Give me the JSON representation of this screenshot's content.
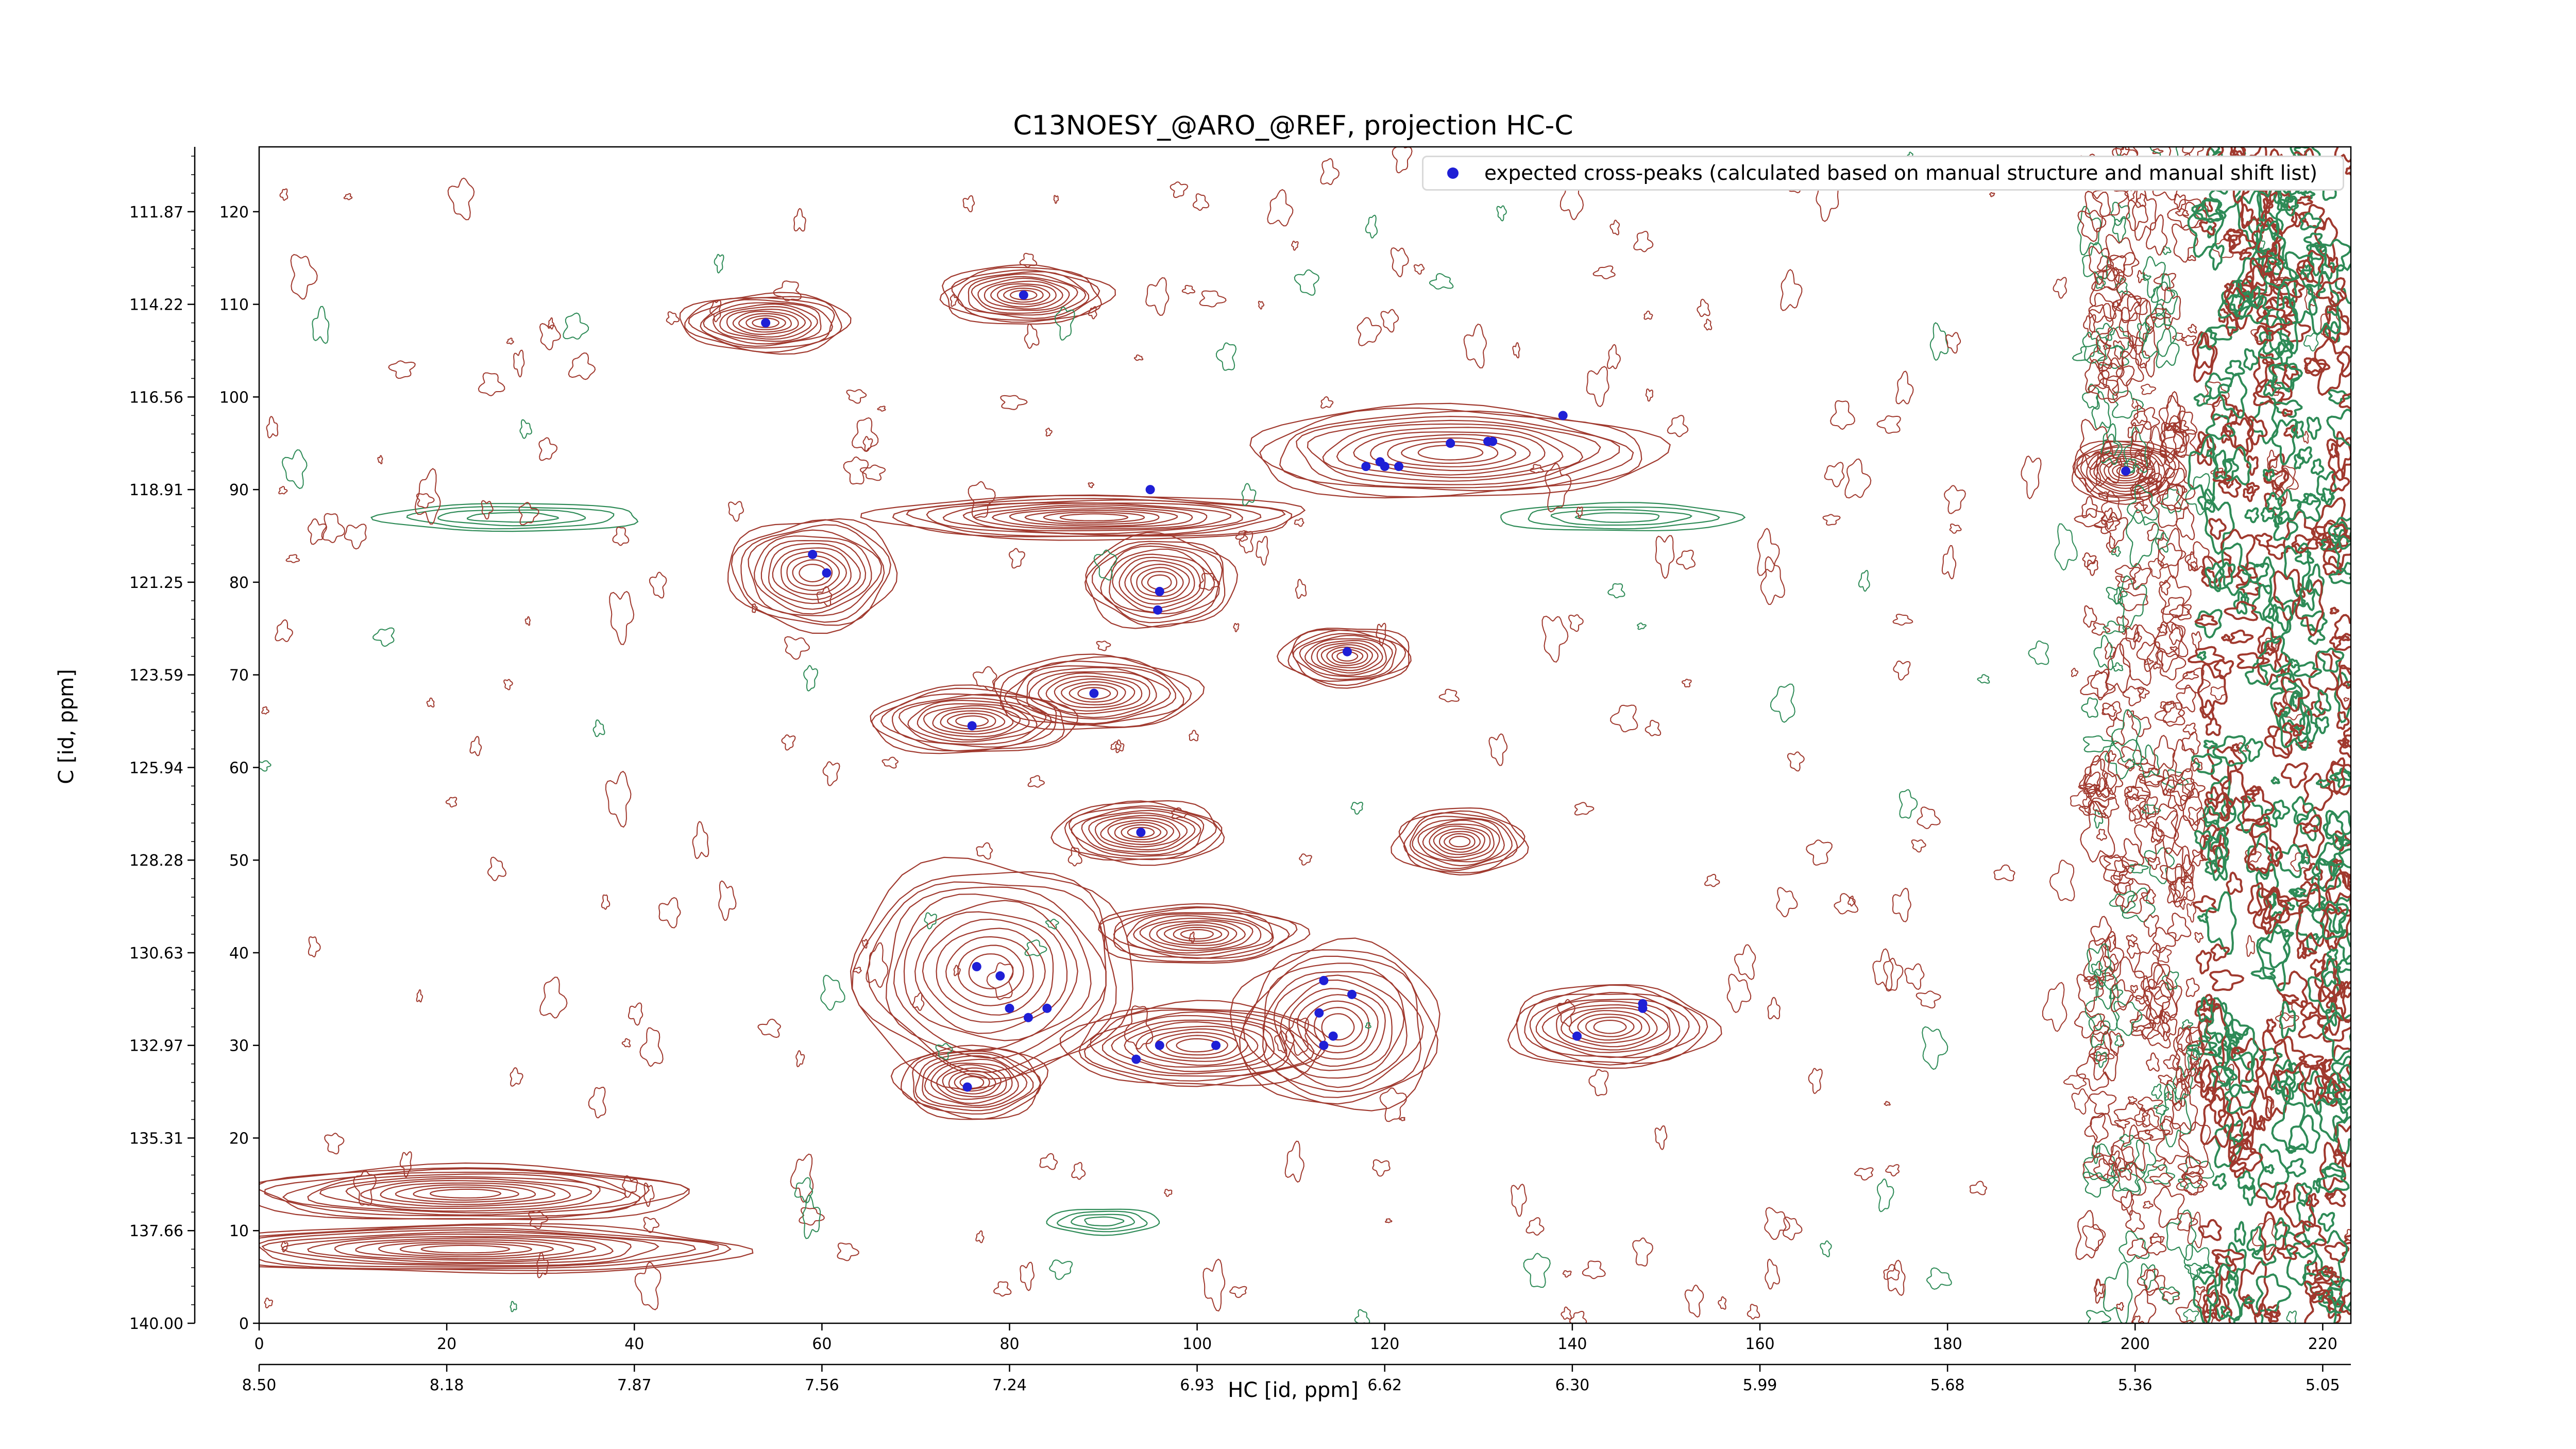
{
  "chart_data": {
    "type": "contour",
    "title": "C13NOESY_@ARO_@REF, projection HC-C",
    "xlabel": "HC [id, ppm]",
    "ylabel": "C [id, ppm]",
    "x_index_ticks": [
      "0",
      "20",
      "40",
      "60",
      "80",
      "100",
      "120",
      "140",
      "160",
      "180",
      "200",
      "220"
    ],
    "x_ppm_ticks": [
      "8.50",
      "8.18",
      "7.87",
      "7.56",
      "7.24",
      "6.93",
      "6.62",
      "6.30",
      "5.99",
      "5.68",
      "5.36",
      "5.05"
    ],
    "y_index_ticks": [
      "0",
      "10",
      "20",
      "30",
      "40",
      "50",
      "60",
      "70",
      "80",
      "90",
      "100",
      "110",
      "120"
    ],
    "y_ppm_ticks": [
      "140.00",
      "137.66",
      "135.31",
      "132.97",
      "130.63",
      "128.28",
      "125.94",
      "123.59",
      "121.25",
      "118.91",
      "116.56",
      "114.22",
      "111.87"
    ],
    "xlim": [
      0,
      223
    ],
    "ylim": [
      0,
      127
    ],
    "legend": {
      "placement": "top-right",
      "label": "expected cross-peaks (calculated based on manual structure and manual shift list)"
    },
    "colors": {
      "positive_contour": "#a0392e",
      "negative_contour": "#2e8b57",
      "marker": "#1f1fd6"
    },
    "peaks": [
      {
        "x": 54,
        "y": 108,
        "rx": 9,
        "ry": 3.2
      },
      {
        "x": 81.5,
        "y": 111,
        "rx": 9,
        "ry": 3.2
      },
      {
        "x": 59,
        "y": 81,
        "rx": 9,
        "ry": 6
      },
      {
        "x": 89,
        "y": 87,
        "rx": 23,
        "ry": 2.4
      },
      {
        "x": 96,
        "y": 80,
        "rx": 8,
        "ry": 5
      },
      {
        "x": 116,
        "y": 72,
        "rx": 7,
        "ry": 3.2
      },
      {
        "x": 76,
        "y": 65,
        "rx": 11,
        "ry": 3.6
      },
      {
        "x": 89,
        "y": 68,
        "rx": 11,
        "ry": 4
      },
      {
        "x": 94,
        "y": 53,
        "rx": 9,
        "ry": 3.4
      },
      {
        "x": 128,
        "y": 52,
        "rx": 7,
        "ry": 3.6
      },
      {
        "x": 78,
        "y": 38,
        "rx": 15,
        "ry": 12
      },
      {
        "x": 100,
        "y": 42,
        "rx": 11,
        "ry": 3.2
      },
      {
        "x": 115,
        "y": 32,
        "rx": 11,
        "ry": 9
      },
      {
        "x": 100,
        "y": 30,
        "rx": 14,
        "ry": 4.5
      },
      {
        "x": 144,
        "y": 32,
        "rx": 11,
        "ry": 4.5
      },
      {
        "x": 76,
        "y": 26,
        "rx": 8,
        "ry": 4
      },
      {
        "x": 127,
        "y": 94,
        "rx": 22,
        "ry": 5
      },
      {
        "x": 199,
        "y": 92,
        "rx": 6,
        "ry": 3.4
      },
      {
        "x": 22,
        "y": 14,
        "rx": 24,
        "ry": 3
      },
      {
        "x": 22,
        "y": 8,
        "rx": 30,
        "ry": 2.6
      }
    ],
    "negative_peaks": [
      {
        "x": 27,
        "y": 87,
        "rx": 14,
        "ry": 1.5
      },
      {
        "x": 145,
        "y": 87,
        "rx": 13,
        "ry": 1.5
      },
      {
        "x": 90,
        "y": 11,
        "rx": 6,
        "ry": 1.4
      }
    ],
    "expected_cross_peaks": [
      {
        "x": 54,
        "y": 108
      },
      {
        "x": 81.5,
        "y": 111
      },
      {
        "x": 59,
        "y": 83
      },
      {
        "x": 60.5,
        "y": 81
      },
      {
        "x": 95,
        "y": 90
      },
      {
        "x": 96,
        "y": 79
      },
      {
        "x": 95.8,
        "y": 77
      },
      {
        "x": 116,
        "y": 72.5
      },
      {
        "x": 76,
        "y": 64.5
      },
      {
        "x": 89,
        "y": 68
      },
      {
        "x": 94,
        "y": 53
      },
      {
        "x": 127,
        "y": 95
      },
      {
        "x": 121.5,
        "y": 92.5
      },
      {
        "x": 120,
        "y": 92.5
      },
      {
        "x": 119.5,
        "y": 93
      },
      {
        "x": 118,
        "y": 92.5
      },
      {
        "x": 131,
        "y": 95.2
      },
      {
        "x": 131.5,
        "y": 95.2
      },
      {
        "x": 139,
        "y": 98
      },
      {
        "x": 76.5,
        "y": 38.5
      },
      {
        "x": 79,
        "y": 37.5
      },
      {
        "x": 80,
        "y": 34
      },
      {
        "x": 82,
        "y": 33
      },
      {
        "x": 84,
        "y": 34
      },
      {
        "x": 75.5,
        "y": 25.5
      },
      {
        "x": 93.5,
        "y": 28.5
      },
      {
        "x": 96,
        "y": 30
      },
      {
        "x": 102,
        "y": 30
      },
      {
        "x": 113.5,
        "y": 37
      },
      {
        "x": 116.5,
        "y": 35.5
      },
      {
        "x": 113,
        "y": 33.5
      },
      {
        "x": 114.5,
        "y": 31
      },
      {
        "x": 113.5,
        "y": 30
      },
      {
        "x": 140.5,
        "y": 31
      },
      {
        "x": 147.5,
        "y": 34.5
      },
      {
        "x": 147.5,
        "y": 34
      },
      {
        "x": 199,
        "y": 92
      }
    ]
  }
}
